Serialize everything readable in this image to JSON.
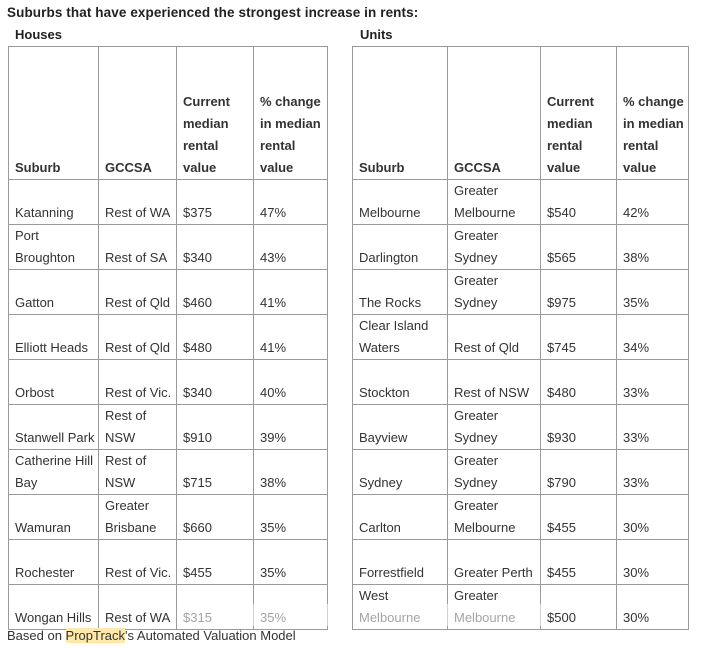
{
  "title": "Suburbs that have experienced the strongest increase in rents:",
  "houses": {
    "label": "Houses",
    "headers": [
      "Suburb",
      "GCCSA",
      "Current median rental value",
      "% change in median rental value"
    ],
    "rows": [
      [
        "Katanning",
        "Rest of WA",
        "$375",
        "47%"
      ],
      [
        "Port Broughton",
        "Rest of SA",
        "$340",
        "43%"
      ],
      [
        "Gatton",
        "Rest of Qld",
        "$460",
        "41%"
      ],
      [
        "Elliott Heads",
        "Rest of Qld",
        "$480",
        "41%"
      ],
      [
        "Orbost",
        "Rest of Vic.",
        "$340",
        "40%"
      ],
      [
        "Stanwell Park",
        "Rest of NSW",
        "$910",
        "39%"
      ],
      [
        "Catherine Hill Bay",
        "Rest of NSW",
        "$715",
        "38%"
      ],
      [
        "Wamuran",
        "Greater Brisbane",
        "$660",
        "35%"
      ],
      [
        "Rochester",
        "Rest of Vic.",
        "$455",
        "35%"
      ],
      [
        "Wongan Hills",
        "Rest of WA",
        "$315",
        "35%"
      ]
    ]
  },
  "units": {
    "label": "Units",
    "headers": [
      "Suburb",
      "GCCSA",
      "Current median rental value",
      "% change in median rental value"
    ],
    "rows": [
      [
        "Melbourne",
        "Greater Melbourne",
        "$540",
        "42%"
      ],
      [
        "Darlington",
        "Greater Sydney",
        "$565",
        "38%"
      ],
      [
        "The Rocks",
        "Greater Sydney",
        "$975",
        "35%"
      ],
      [
        "Clear Island Waters",
        "Rest of Qld",
        "$745",
        "34%"
      ],
      [
        "Stockton",
        "Rest of NSW",
        "$480",
        "33%"
      ],
      [
        "Bayview",
        "Greater Sydney",
        "$930",
        "33%"
      ],
      [
        "Sydney",
        "Greater Sydney",
        "$790",
        "33%"
      ],
      [
        "Carlton",
        "Greater Melbourne",
        "$455",
        "30%"
      ],
      [
        "Forrestfield",
        "Greater Perth",
        "$455",
        "30%"
      ],
      [
        "West Melbourne",
        "Greater Melbourne",
        "$500",
        "30%"
      ]
    ]
  },
  "footnote": {
    "before": "Based on ",
    "highlight": "PropTrack",
    "after": "'s Automated Valuation Model"
  }
}
